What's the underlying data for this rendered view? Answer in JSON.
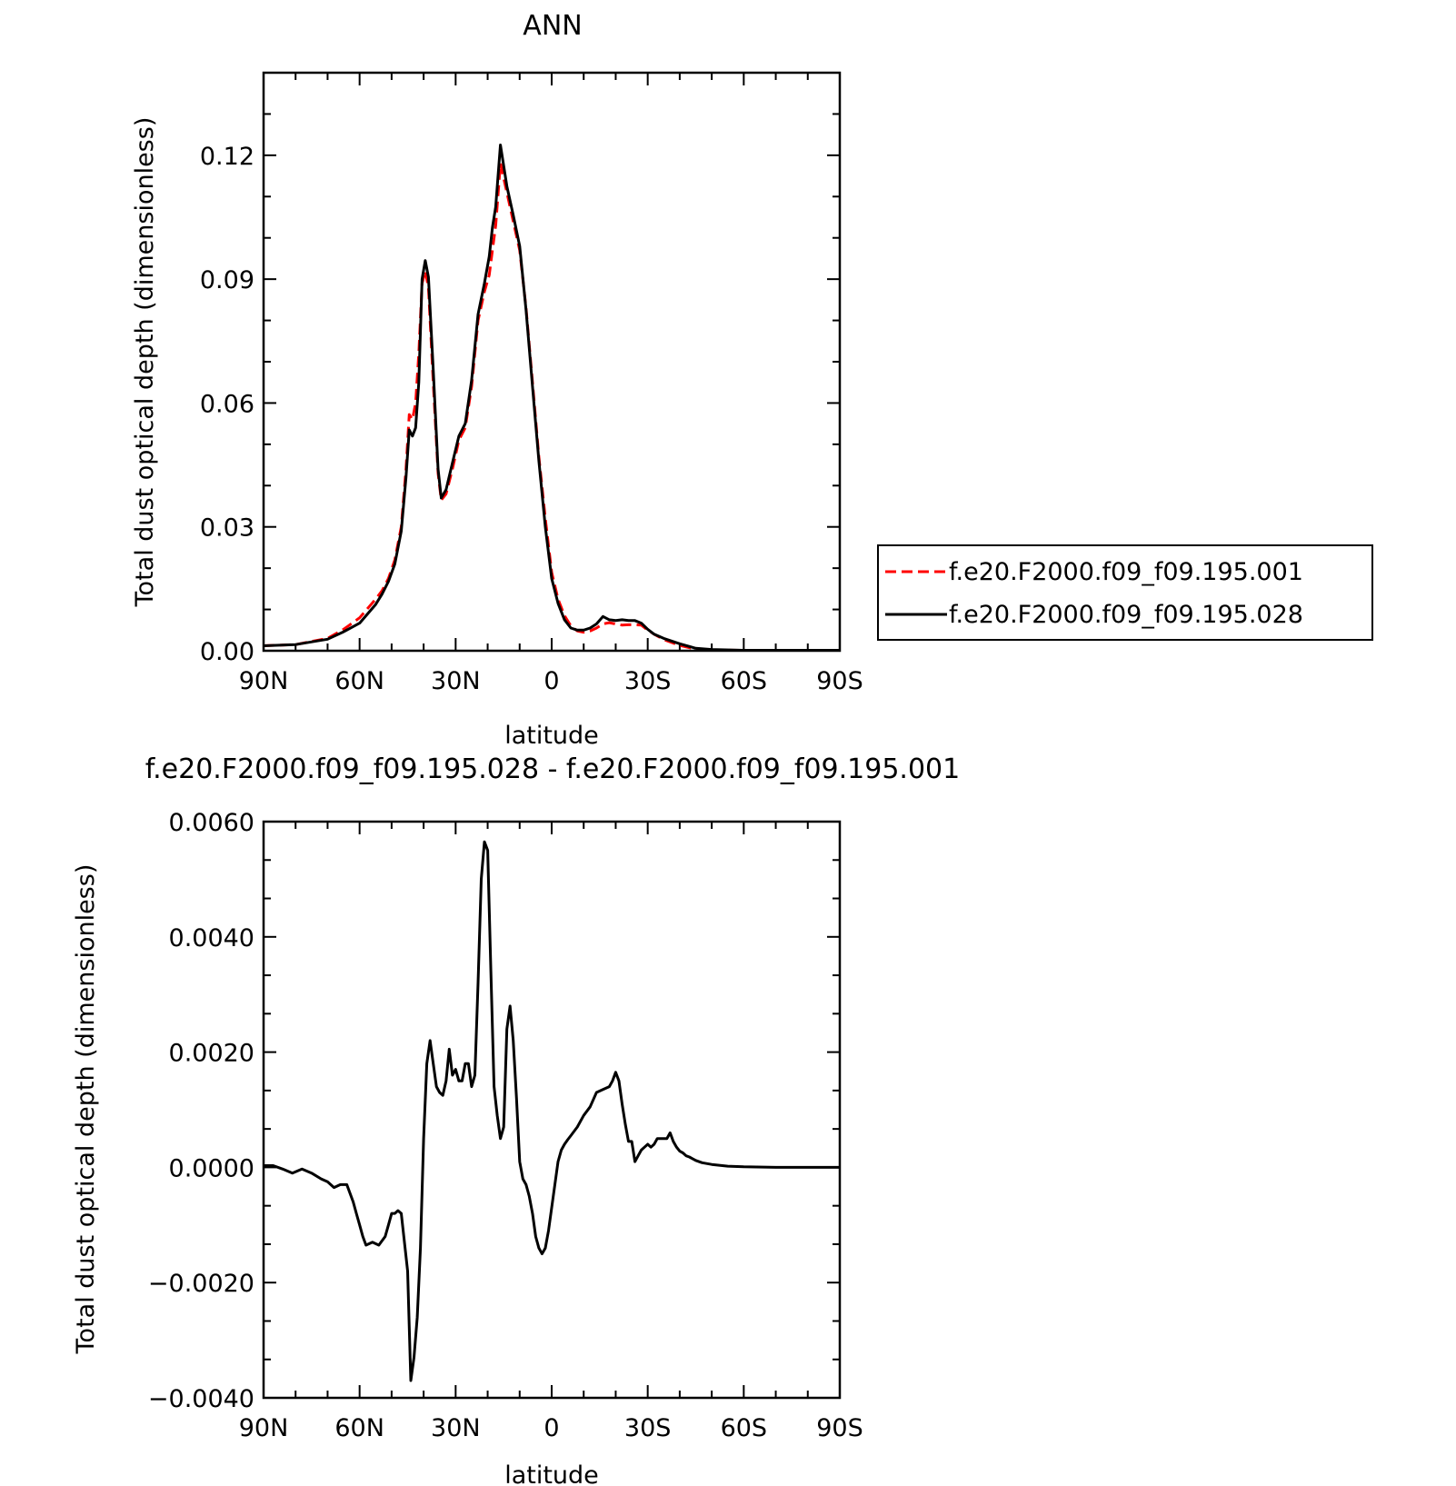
{
  "chart_data": [
    {
      "type": "line",
      "title": "ANN",
      "xlabel": "latitude",
      "ylabel": "Total dust optical depth (dimensionless)",
      "xlim": [
        90,
        -90
      ],
      "ylim": [
        0,
        0.14
      ],
      "x_tick_values": [
        90,
        60,
        30,
        0,
        -30,
        -60,
        -90
      ],
      "x_tick_labels": [
        "90N",
        "60N",
        "30N",
        "0",
        "30S",
        "60S",
        "90S"
      ],
      "y_tick_values": [
        0,
        0.03,
        0.06,
        0.09,
        0.12
      ],
      "y_tick_labels": [
        "0.00",
        "0.03",
        "0.06",
        "0.09",
        "0.12"
      ],
      "legend": {
        "placement": "outside-right",
        "entries": [
          "f.e20.F2000.f09_f09.195.001",
          "f.e20.F2000.f09_f09.195.028"
        ]
      },
      "series": [
        {
          "name": "f.e20.F2000.f09_f09.195.001",
          "color": "#ff0000",
          "style": "dashed",
          "x": [
            90,
            80,
            70,
            65,
            60,
            55,
            53,
            51,
            49,
            47,
            45.5,
            44.5,
            43.5,
            42.5,
            41.5,
            40.5,
            39.5,
            38.5,
            37,
            35.5,
            34.5,
            33,
            31,
            29,
            27,
            25,
            23,
            21,
            19.5,
            18.5,
            17.5,
            16,
            14,
            12,
            10,
            8,
            6,
            4,
            2,
            0,
            -2,
            -4,
            -6,
            -8,
            -10,
            -12,
            -14,
            -16,
            -18,
            -20,
            -22,
            -24,
            -26,
            -28,
            -30,
            -32,
            -35,
            -40,
            -45,
            -50,
            -60,
            -70,
            -80,
            -90
          ],
          "y": [
            0.0012,
            0.0015,
            0.003,
            0.0052,
            0.008,
            0.0125,
            0.0145,
            0.0175,
            0.022,
            0.03,
            0.044,
            0.0572,
            0.056,
            0.06,
            0.072,
            0.089,
            0.092,
            0.088,
            0.065,
            0.043,
            0.0365,
            0.038,
            0.044,
            0.051,
            0.054,
            0.064,
            0.08,
            0.087,
            0.091,
            0.097,
            0.103,
            0.118,
            0.111,
            0.104,
            0.097,
            0.083,
            0.065,
            0.047,
            0.032,
            0.019,
            0.0125,
            0.0085,
            0.006,
            0.0048,
            0.0045,
            0.0048,
            0.0055,
            0.0065,
            0.0068,
            0.0065,
            0.0062,
            0.0063,
            0.0063,
            0.0062,
            0.005,
            0.004,
            0.0027,
            0.0013,
            0.0004,
            0.0002,
            0.0001,
            0.0001,
            0.0001,
            0.0001
          ]
        },
        {
          "name": "f.e20.F2000.f09_f09.195.028",
          "color": "#000000",
          "style": "solid",
          "x": [
            90,
            80,
            70,
            65,
            60,
            55,
            53,
            51,
            49,
            47,
            45.5,
            44.5,
            43.5,
            42.5,
            41.5,
            40.5,
            39.5,
            38.5,
            37,
            35.5,
            34.5,
            33,
            31,
            29,
            27,
            25,
            23,
            21,
            19.5,
            18.5,
            17.5,
            16,
            14,
            12,
            10,
            8,
            6,
            4,
            2,
            0,
            -2,
            -4,
            -6,
            -8,
            -10,
            -12,
            -14,
            -16,
            -18,
            -20,
            -22,
            -24,
            -26,
            -28,
            -30,
            -32,
            -35,
            -40,
            -45,
            -50,
            -60,
            -70,
            -80,
            -90
          ],
          "y": [
            0.0012,
            0.0015,
            0.0028,
            0.0046,
            0.0067,
            0.0112,
            0.0137,
            0.0168,
            0.021,
            0.029,
            0.042,
            0.0535,
            0.052,
            0.054,
            0.065,
            0.09,
            0.0945,
            0.0905,
            0.068,
            0.044,
            0.037,
            0.039,
            0.0455,
            0.052,
            0.055,
            0.0655,
            0.0815,
            0.089,
            0.0955,
            0.1025,
            0.1075,
            0.1225,
            0.1125,
            0.1055,
            0.098,
            0.0825,
            0.064,
            0.046,
            0.03,
            0.0175,
            0.0115,
            0.0075,
            0.0055,
            0.005,
            0.005,
            0.0055,
            0.0065,
            0.0083,
            0.0075,
            0.0073,
            0.0075,
            0.0073,
            0.0073,
            0.0067,
            0.0052,
            0.004,
            0.003,
            0.0017,
            0.0006,
            0.0003,
            0.0001,
            0.0001,
            0.0001,
            0.0001
          ]
        }
      ]
    },
    {
      "type": "line",
      "title": "f.e20.F2000.f09_f09.195.028 - f.e20.F2000.f09_f09.195.001",
      "xlabel": "latitude",
      "ylabel": "Total dust optical depth (dimensionless)",
      "xlim": [
        90,
        -90
      ],
      "ylim": [
        -0.004,
        0.006
      ],
      "x_tick_values": [
        90,
        60,
        30,
        0,
        -30,
        -60,
        -90
      ],
      "x_tick_labels": [
        "90N",
        "60N",
        "30N",
        "0",
        "30S",
        "60S",
        "90S"
      ],
      "y_tick_values": [
        -0.004,
        -0.002,
        0,
        0.002,
        0.004,
        0.006
      ],
      "y_tick_labels": [
        "−0.0040",
        "−0.0020",
        "0.0000",
        "0.0020",
        "0.0040",
        "0.0060"
      ],
      "series": [
        {
          "color": "#000000",
          "style": "solid",
          "x": [
            90,
            87,
            84,
            81,
            78,
            75,
            72,
            70,
            68,
            66,
            64,
            62,
            61,
            60,
            59,
            58,
            56,
            54,
            52,
            51,
            50,
            49,
            48,
            47,
            46,
            45,
            44,
            43,
            42,
            41,
            40,
            39,
            38,
            37,
            36,
            35,
            34,
            33,
            32,
            31,
            30,
            29,
            28,
            27,
            26,
            25,
            24,
            23,
            22,
            21,
            20,
            19,
            18,
            17,
            16,
            15,
            14,
            13,
            12,
            11,
            10,
            9,
            8,
            7,
            6,
            5,
            4,
            3,
            2,
            1,
            0,
            -1,
            -2,
            -3,
            -4,
            -5,
            -6,
            -8,
            -10,
            -12,
            -14,
            -16,
            -18,
            -19,
            -20,
            -21,
            -22,
            -23,
            -24,
            -25,
            -26,
            -27,
            -28,
            -29,
            -30,
            -31,
            -32,
            -33,
            -34,
            -35,
            -36,
            -37,
            -38,
            -39,
            -40,
            -41,
            -42,
            -43,
            -44,
            -45,
            -47,
            -50,
            -55,
            -60,
            -70,
            -80,
            -90
          ],
          "y": [
            3e-05,
            3e-05,
            -3e-05,
            -0.0001,
            -3e-05,
            -0.0001,
            -0.0002,
            -0.00025,
            -0.00035,
            -0.0003,
            -0.0003,
            -0.0006,
            -0.0008,
            -0.001,
            -0.0012,
            -0.00135,
            -0.0013,
            -0.00135,
            -0.0012,
            -0.001,
            -0.0008,
            -0.0008,
            -0.00075,
            -0.0008,
            -0.0013,
            -0.0018,
            -0.0037,
            -0.0033,
            -0.0026,
            -0.0014,
            0.0005,
            0.0018,
            0.0022,
            0.0018,
            0.0014,
            0.0013,
            0.00125,
            0.0015,
            0.00205,
            0.0016,
            0.0017,
            0.0015,
            0.0015,
            0.0018,
            0.0018,
            0.0014,
            0.0016,
            0.0032,
            0.005,
            0.00565,
            0.0055,
            0.0034,
            0.0014,
            0.0009,
            0.0005,
            0.0007,
            0.0024,
            0.0028,
            0.0022,
            0.0012,
            0.0001,
            -0.0002,
            -0.0003,
            -0.0005,
            -0.0008,
            -0.0012,
            -0.0014,
            -0.0015,
            -0.0014,
            -0.0011,
            -0.0007,
            -0.0003,
            0.0001,
            0.0003,
            0.0004,
            0.00048,
            0.00055,
            0.0007,
            0.0009,
            0.00105,
            0.0013,
            0.00135,
            0.0014,
            0.0015,
            0.00165,
            0.0015,
            0.0011,
            0.00075,
            0.00045,
            0.00045,
            0.0001,
            0.0002,
            0.0003,
            0.00035,
            0.0004,
            0.00035,
            0.0004,
            0.0005,
            0.0005,
            0.0005,
            0.0005,
            0.0006,
            0.00045,
            0.00035,
            0.00028,
            0.00025,
            0.0002,
            0.00018,
            0.00015,
            0.00012,
            8e-05,
            5e-05,
            2e-05,
            1e-05,
            0,
            0,
            0
          ]
        }
      ]
    }
  ]
}
